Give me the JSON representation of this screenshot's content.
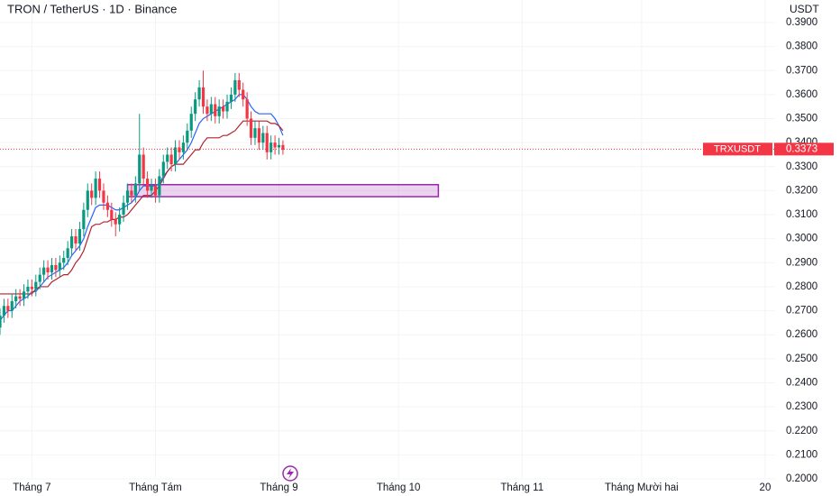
{
  "chart_data": {
    "type": "candlestick",
    "title": "TRON / TetherUS · 1D · Binance",
    "y_unit": "USDT",
    "x": [
      0,
      1,
      2,
      3,
      4,
      5,
      6,
      7,
      8,
      9,
      10,
      11,
      12,
      13,
      14,
      15,
      16,
      17,
      18,
      19,
      20,
      21,
      22,
      23,
      24,
      25,
      26,
      27,
      28,
      29,
      30,
      31,
      32,
      33,
      34,
      35,
      36,
      37,
      38,
      39,
      40,
      41,
      42,
      43,
      44,
      45,
      46,
      47,
      48,
      49,
      50,
      51,
      52,
      53,
      54,
      55,
      56,
      57,
      58,
      59,
      60,
      61,
      62,
      63,
      64,
      65,
      66,
      67,
      68,
      69,
      70,
      71
    ],
    "open": [
      0.263,
      0.268,
      0.272,
      0.27,
      0.274,
      0.276,
      0.275,
      0.278,
      0.28,
      0.279,
      0.282,
      0.285,
      0.288,
      0.286,
      0.289,
      0.287,
      0.29,
      0.292,
      0.296,
      0.301,
      0.298,
      0.304,
      0.312,
      0.32,
      0.317,
      0.325,
      0.32,
      0.315,
      0.312,
      0.308,
      0.306,
      0.31,
      0.315,
      0.32,
      0.318,
      0.323,
      0.335,
      0.325,
      0.32,
      0.322,
      0.318,
      0.326,
      0.332,
      0.335,
      0.331,
      0.338,
      0.336,
      0.34,
      0.345,
      0.352,
      0.358,
      0.363,
      0.355,
      0.352,
      0.356,
      0.351,
      0.355,
      0.353,
      0.357,
      0.36,
      0.366,
      0.362,
      0.358,
      0.35,
      0.342,
      0.346,
      0.34,
      0.344,
      0.336,
      0.34,
      0.338,
      0.339
    ],
    "high": [
      0.271,
      0.275,
      0.275,
      0.277,
      0.279,
      0.279,
      0.281,
      0.283,
      0.283,
      0.285,
      0.288,
      0.291,
      0.291,
      0.292,
      0.292,
      0.293,
      0.295,
      0.299,
      0.304,
      0.304,
      0.307,
      0.315,
      0.323,
      0.323,
      0.328,
      0.328,
      0.323,
      0.318,
      0.315,
      0.311,
      0.313,
      0.318,
      0.323,
      0.323,
      0.326,
      0.352,
      0.338,
      0.328,
      0.325,
      0.325,
      0.329,
      0.335,
      0.338,
      0.338,
      0.341,
      0.341,
      0.343,
      0.348,
      0.355,
      0.361,
      0.366,
      0.37,
      0.358,
      0.359,
      0.359,
      0.358,
      0.358,
      0.36,
      0.363,
      0.369,
      0.369,
      0.365,
      0.361,
      0.353,
      0.349,
      0.349,
      0.347,
      0.347,
      0.343,
      0.343,
      0.342,
      0.341
    ],
    "low": [
      0.26,
      0.265,
      0.267,
      0.267,
      0.271,
      0.272,
      0.272,
      0.275,
      0.276,
      0.276,
      0.279,
      0.282,
      0.283,
      0.283,
      0.284,
      0.284,
      0.287,
      0.289,
      0.293,
      0.295,
      0.295,
      0.301,
      0.309,
      0.314,
      0.314,
      0.317,
      0.312,
      0.309,
      0.305,
      0.301,
      0.303,
      0.307,
      0.312,
      0.315,
      0.315,
      0.32,
      0.322,
      0.317,
      0.317,
      0.315,
      0.315,
      0.323,
      0.329,
      0.328,
      0.328,
      0.333,
      0.333,
      0.337,
      0.342,
      0.349,
      0.355,
      0.352,
      0.349,
      0.349,
      0.348,
      0.348,
      0.35,
      0.35,
      0.354,
      0.357,
      0.359,
      0.355,
      0.347,
      0.339,
      0.339,
      0.337,
      0.337,
      0.333,
      0.333,
      0.335,
      0.335,
      0.335
    ],
    "close": [
      0.268,
      0.272,
      0.27,
      0.274,
      0.276,
      0.275,
      0.278,
      0.28,
      0.279,
      0.282,
      0.285,
      0.288,
      0.286,
      0.289,
      0.287,
      0.29,
      0.292,
      0.296,
      0.301,
      0.298,
      0.304,
      0.312,
      0.32,
      0.317,
      0.325,
      0.32,
      0.315,
      0.312,
      0.308,
      0.306,
      0.31,
      0.315,
      0.32,
      0.318,
      0.323,
      0.335,
      0.325,
      0.32,
      0.322,
      0.318,
      0.326,
      0.332,
      0.335,
      0.331,
      0.338,
      0.336,
      0.34,
      0.345,
      0.352,
      0.358,
      0.363,
      0.355,
      0.352,
      0.356,
      0.351,
      0.355,
      0.353,
      0.357,
      0.36,
      0.366,
      0.362,
      0.358,
      0.35,
      0.342,
      0.346,
      0.34,
      0.344,
      0.336,
      0.34,
      0.338,
      0.339,
      0.337
    ],
    "up_color": "#089981",
    "down_color": "#f23645",
    "lines": [
      {
        "color": "#2962ff",
        "values": [
          0.266,
          0.268,
          0.27,
          0.27,
          0.272,
          0.274,
          0.275,
          0.276,
          0.278,
          0.278,
          0.28,
          0.282,
          0.284,
          0.285,
          0.286,
          0.287,
          0.288,
          0.29,
          0.293,
          0.295,
          0.297,
          0.3,
          0.305,
          0.309,
          0.313,
          0.314,
          0.314,
          0.314,
          0.313,
          0.312,
          0.312,
          0.313,
          0.314,
          0.315,
          0.317,
          0.32,
          0.322,
          0.322,
          0.322,
          0.322,
          0.323,
          0.326,
          0.328,
          0.33,
          0.331,
          0.333,
          0.335,
          0.337,
          0.34,
          0.344,
          0.348,
          0.35,
          0.351,
          0.352,
          0.353,
          0.354,
          0.355,
          0.356,
          0.357,
          0.358,
          0.36,
          0.36,
          0.358,
          0.355,
          0.353,
          0.352,
          0.352,
          0.352,
          0.352,
          0.35,
          0.347,
          0.343
        ]
      },
      {
        "color": "#b2222f",
        "values": [
          0.277,
          0.277,
          0.277,
          0.277,
          0.277,
          0.277,
          0.277,
          0.277,
          0.277,
          0.279,
          0.28,
          0.28,
          0.28,
          0.282,
          0.283,
          0.284,
          0.285,
          0.285,
          0.287,
          0.29,
          0.292,
          0.295,
          0.3,
          0.305,
          0.306,
          0.306,
          0.307,
          0.307,
          0.308,
          0.308,
          0.309,
          0.309,
          0.31,
          0.312,
          0.314,
          0.316,
          0.318,
          0.318,
          0.318,
          0.32,
          0.322,
          0.325,
          0.328,
          0.33,
          0.331,
          0.331,
          0.331,
          0.333,
          0.335,
          0.337,
          0.337,
          0.34,
          0.342,
          0.342,
          0.342,
          0.342,
          0.343,
          0.343,
          0.344,
          0.345,
          0.347,
          0.349,
          0.349,
          0.349,
          0.349,
          0.349,
          0.349,
          0.349,
          0.348,
          0.348,
          0.347,
          0.345
        ]
      }
    ],
    "zone": {
      "x": [
        32,
        110
      ],
      "y": [
        0.3175,
        0.3225
      ],
      "color": "#9c27b0"
    },
    "last_price": {
      "name": "TRXUSDT",
      "value": 0.3373,
      "color": "#f23645"
    },
    "xlim": [
      0,
      194.5
    ],
    "xticks": [
      {
        "value": 8,
        "label": "Tháng 7"
      },
      {
        "value": 39,
        "label": "Tháng Tám"
      },
      {
        "value": 70,
        "label": "Tháng 9"
      },
      {
        "value": 100,
        "label": "Tháng 10"
      },
      {
        "value": 131,
        "label": "Tháng 11"
      },
      {
        "value": 161,
        "label": "Tháng Mười hai"
      },
      {
        "value": 192,
        "label": "20"
      }
    ],
    "ylim": [
      0.2,
      0.39
    ],
    "yticks": [
      {
        "value": 0.2,
        "label": "0.2000"
      },
      {
        "value": 0.21,
        "label": "0.2100"
      },
      {
        "value": 0.22,
        "label": "0.2200"
      },
      {
        "value": 0.23,
        "label": "0.2300"
      },
      {
        "value": 0.24,
        "label": "0.2400"
      },
      {
        "value": 0.25,
        "label": "0.2500"
      },
      {
        "value": 0.26,
        "label": "0.2600"
      },
      {
        "value": 0.27,
        "label": "0.2700"
      },
      {
        "value": 0.28,
        "label": "0.2800"
      },
      {
        "value": 0.29,
        "label": "0.2900"
      },
      {
        "value": 0.3,
        "label": "0.3000"
      },
      {
        "value": 0.31,
        "label": "0.3100"
      },
      {
        "value": 0.32,
        "label": "0.3200"
      },
      {
        "value": 0.33,
        "label": "0.3300"
      },
      {
        "value": 0.34,
        "label": "0.3400"
      },
      {
        "value": 0.35,
        "label": "0.3500"
      },
      {
        "value": 0.36,
        "label": "0.3600"
      },
      {
        "value": 0.37,
        "label": "0.3700"
      },
      {
        "value": 0.38,
        "label": "0.3800"
      },
      {
        "value": 0.39,
        "label": "0.3900"
      }
    ],
    "grid": true
  }
}
